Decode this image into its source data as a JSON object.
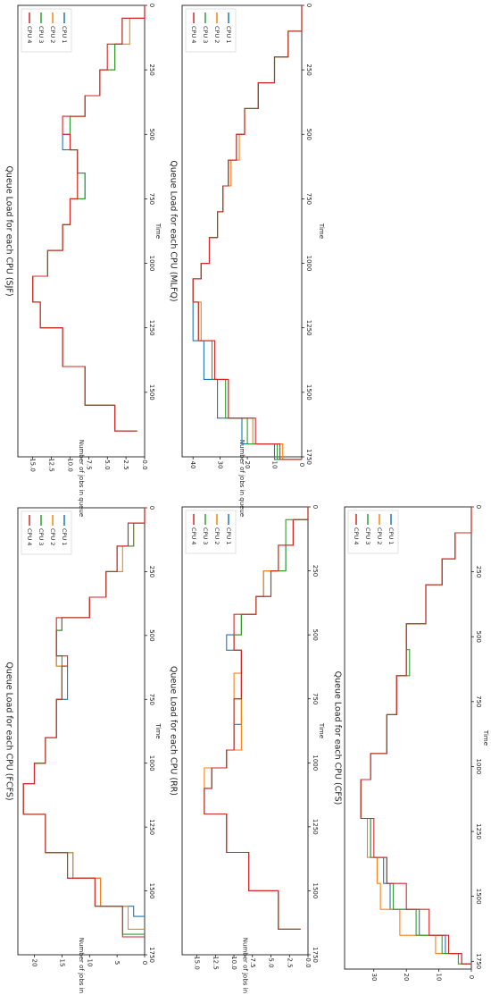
{
  "chart_data": [
    {
      "type": "line",
      "title": "Queue Load for each CPU (FCFS)",
      "xlabel": "Time",
      "ylabel": "Number of jobs in queue",
      "xlim": [
        0,
        1750
      ],
      "ylim": [
        0,
        23
      ],
      "xticks": [
        0,
        250,
        500,
        750,
        1000,
        1250,
        1500,
        1750
      ],
      "yticks": [
        0,
        5,
        10,
        15,
        20
      ],
      "legend_position": "top-right",
      "series": [
        {
          "name": "CPU 1",
          "color": "#1f77b4",
          "x": [
            0,
            60,
            150,
            250,
            350,
            430,
            480,
            580,
            620,
            750,
            900,
            1000,
            1080,
            1200,
            1350,
            1450,
            1560,
            1600
          ],
          "y": [
            0,
            3,
            5,
            7,
            10,
            15,
            16,
            16,
            14,
            16,
            18,
            20,
            22,
            18,
            13,
            8,
            2,
            0
          ]
        },
        {
          "name": "CPU 2",
          "color": "#ff7f0e",
          "x": [
            0,
            60,
            150,
            250,
            350,
            430,
            480,
            580,
            620,
            750,
            900,
            1000,
            1080,
            1200,
            1350,
            1450,
            1560,
            1650
          ],
          "y": [
            0,
            2,
            4,
            7,
            10,
            15,
            16,
            16,
            15,
            16,
            18,
            20,
            22,
            18,
            13,
            8,
            3,
            0
          ]
        },
        {
          "name": "CPU 3",
          "color": "#2ca02c",
          "x": [
            0,
            60,
            150,
            250,
            350,
            430,
            480,
            580,
            620,
            750,
            900,
            1000,
            1080,
            1200,
            1350,
            1450,
            1560,
            1670
          ],
          "y": [
            0,
            2,
            5,
            7,
            10,
            15,
            16,
            15,
            15,
            16,
            18,
            20,
            22,
            18,
            14,
            9,
            4,
            0
          ]
        },
        {
          "name": "CPU 4",
          "color": "#d62728",
          "x": [
            0,
            60,
            150,
            250,
            350,
            430,
            480,
            580,
            620,
            750,
            900,
            1000,
            1080,
            1200,
            1350,
            1450,
            1560,
            1680
          ],
          "y": [
            0,
            3,
            5,
            7,
            10,
            16,
            16,
            14,
            15,
            16,
            18,
            20,
            22,
            18,
            14,
            9,
            4,
            0
          ]
        }
      ]
    },
    {
      "type": "line",
      "title": "Queue Load for each CPU (SJF)",
      "xlabel": "Time",
      "ylabel": "Number of jobs in queue",
      "xlim": [
        0,
        1750
      ],
      "ylim": [
        0,
        17
      ],
      "xticks": [
        0,
        250,
        500,
        750,
        1000,
        1250,
        1500
      ],
      "yticks": [
        0.0,
        2.5,
        5.0,
        7.5,
        10.0,
        12.5,
        15.0
      ],
      "legend_position": "top-right",
      "series": [
        {
          "name": "CPU 1",
          "color": "#1f77b4",
          "x": [
            0,
            50,
            150,
            250,
            350,
            430,
            500,
            560,
            650,
            750,
            850,
            950,
            1050,
            1150,
            1250,
            1400,
            1550,
            1650
          ],
          "y": [
            0,
            3,
            4,
            6,
            8,
            10,
            11,
            9,
            8,
            10,
            11,
            13,
            15,
            14,
            11,
            8,
            4,
            1
          ]
        },
        {
          "name": "CPU 2",
          "color": "#ff7f0e",
          "x": [
            0,
            50,
            150,
            250,
            350,
            430,
            500,
            560,
            650,
            750,
            850,
            950,
            1050,
            1150,
            1250,
            1400,
            1550,
            1650
          ],
          "y": [
            0,
            2,
            4,
            6,
            8,
            10,
            10,
            9,
            9,
            10,
            11,
            13,
            15,
            14,
            11,
            8,
            4,
            1
          ]
        },
        {
          "name": "CPU 3",
          "color": "#2ca02c",
          "x": [
            0,
            50,
            150,
            250,
            350,
            430,
            500,
            560,
            650,
            750,
            850,
            950,
            1050,
            1150,
            1250,
            1400,
            1550,
            1650
          ],
          "y": [
            0,
            3,
            4,
            6,
            8,
            10,
            10,
            9,
            8,
            10,
            11,
            13,
            15,
            14,
            11,
            8,
            4,
            1
          ]
        },
        {
          "name": "CPU 4",
          "color": "#d62728",
          "x": [
            0,
            50,
            150,
            250,
            350,
            430,
            500,
            560,
            650,
            750,
            850,
            950,
            1050,
            1150,
            1250,
            1400,
            1550,
            1650
          ],
          "y": [
            0,
            3,
            5,
            6,
            8,
            11,
            10,
            9,
            9,
            10,
            11,
            13,
            15,
            14,
            11,
            8,
            4,
            1
          ]
        }
      ]
    },
    {
      "type": "line",
      "title": "Queue Load for each CPU (RR)",
      "xlabel": "Time",
      "ylabel": "Number of jobs in queue",
      "xlim": [
        0,
        1750
      ],
      "ylim": [
        0,
        17
      ],
      "xticks": [
        0,
        250,
        500,
        750,
        1000,
        1250,
        1500,
        1750
      ],
      "yticks": [
        0.0,
        2.5,
        5.0,
        7.5,
        10.0,
        12.5,
        15.0
      ],
      "legend_position": "top-right",
      "series": [
        {
          "name": "CPU 1",
          "color": "#1f77b4",
          "x": [
            0,
            50,
            150,
            250,
            350,
            420,
            500,
            560,
            650,
            750,
            850,
            950,
            1020,
            1100,
            1200,
            1350,
            1500,
            1650
          ],
          "y": [
            0,
            2,
            3,
            6,
            7,
            9,
            11,
            9,
            9,
            9,
            10,
            11,
            13,
            14,
            11,
            8,
            4,
            1
          ]
        },
        {
          "name": "CPU 2",
          "color": "#ff7f0e",
          "x": [
            0,
            50,
            150,
            250,
            350,
            420,
            500,
            560,
            650,
            750,
            850,
            950,
            1020,
            1100,
            1200,
            1350,
            1500,
            1650
          ],
          "y": [
            0,
            2,
            4,
            6,
            7,
            9,
            10,
            9,
            10,
            9,
            9,
            11,
            14,
            14,
            11,
            8,
            4,
            1
          ]
        },
        {
          "name": "CPU 3",
          "color": "#2ca02c",
          "x": [
            0,
            50,
            150,
            250,
            350,
            420,
            500,
            560,
            650,
            750,
            850,
            950,
            1020,
            1100,
            1200,
            1350,
            1500,
            1650
          ],
          "y": [
            0,
            3,
            3,
            5,
            7,
            9,
            10,
            9,
            9,
            10,
            10,
            11,
            13,
            14,
            11,
            8,
            4,
            1
          ]
        },
        {
          "name": "CPU 4",
          "color": "#d62728",
          "x": [
            0,
            50,
            150,
            250,
            350,
            420,
            500,
            560,
            650,
            750,
            850,
            950,
            1020,
            1100,
            1200,
            1350,
            1500,
            1650
          ],
          "y": [
            0,
            2,
            4,
            5,
            7,
            10,
            10,
            9,
            9,
            10,
            10,
            11,
            13,
            14,
            11,
            8,
            4,
            1
          ]
        }
      ]
    },
    {
      "type": "line",
      "title": "Queue Load for each CPU (MLFQ)",
      "xlabel": "Time",
      "ylabel": "Number of jobs in queue",
      "xlim": [
        0,
        1750
      ],
      "ylim": [
        0,
        44
      ],
      "xticks": [
        0,
        250,
        500,
        750,
        1000,
        1250,
        1500,
        1750
      ],
      "yticks": [
        0,
        10,
        20,
        30,
        40
      ],
      "legend_position": "top-right",
      "series": [
        {
          "name": "CPU 1",
          "color": "#1f77b4",
          "x": [
            0,
            100,
            200,
            300,
            400,
            500,
            600,
            700,
            800,
            900,
            1000,
            1060,
            1150,
            1300,
            1450,
            1600,
            1700,
            1760
          ],
          "y": [
            0,
            5,
            10,
            16,
            21,
            24,
            27,
            29,
            31,
            34,
            37,
            40,
            40,
            36,
            31,
            22,
            10,
            0
          ]
        },
        {
          "name": "CPU 2",
          "color": "#ff7f0e",
          "x": [
            0,
            100,
            200,
            300,
            400,
            500,
            600,
            700,
            800,
            900,
            1000,
            1060,
            1150,
            1300,
            1450,
            1600,
            1700,
            1760
          ],
          "y": [
            0,
            5,
            10,
            16,
            21,
            23,
            26,
            29,
            31,
            34,
            37,
            40,
            37,
            32,
            27,
            18,
            7,
            0
          ]
        },
        {
          "name": "CPU 3",
          "color": "#2ca02c",
          "x": [
            0,
            100,
            200,
            300,
            400,
            500,
            600,
            700,
            800,
            900,
            1000,
            1060,
            1150,
            1300,
            1450,
            1600,
            1700,
            1760
          ],
          "y": [
            0,
            5,
            10,
            16,
            21,
            24,
            27,
            29,
            31,
            34,
            37,
            40,
            38,
            33,
            28,
            20,
            9,
            0
          ]
        },
        {
          "name": "CPU 4",
          "color": "#d62728",
          "x": [
            0,
            100,
            200,
            300,
            400,
            500,
            600,
            700,
            800,
            900,
            1000,
            1060,
            1150,
            1300,
            1450,
            1600,
            1700,
            1760
          ],
          "y": [
            0,
            5,
            10,
            16,
            21,
            24,
            27,
            29,
            31,
            34,
            37,
            40,
            38,
            32,
            27,
            17,
            8,
            0
          ]
        }
      ]
    },
    {
      "type": "line",
      "title": "Queue Load for each CPU (CFS)",
      "xlabel": "Time",
      "ylabel": "Number of jobs in queue",
      "xlim": [
        0,
        1780
      ],
      "ylim": [
        0,
        39
      ],
      "xticks": [
        0,
        250,
        500,
        750,
        1000,
        1250,
        1500,
        1750
      ],
      "yticks": [
        0,
        10,
        20,
        30
      ],
      "legend_position": "top-right",
      "series": [
        {
          "name": "CPU 1",
          "color": "#1f77b4",
          "x": [
            0,
            100,
            200,
            300,
            450,
            550,
            650,
            800,
            950,
            1050,
            1100,
            1200,
            1350,
            1450,
            1550,
            1650,
            1720,
            1760
          ],
          "y": [
            0,
            5,
            9,
            14,
            20,
            20,
            23,
            26,
            31,
            34,
            34,
            31,
            27,
            25,
            16,
            8,
            3,
            0
          ]
        },
        {
          "name": "CPU 2",
          "color": "#ff7f0e",
          "x": [
            0,
            100,
            200,
            300,
            450,
            550,
            650,
            800,
            950,
            1050,
            1100,
            1200,
            1350,
            1450,
            1550,
            1650,
            1720,
            1760
          ],
          "y": [
            0,
            5,
            9,
            14,
            20,
            20,
            23,
            26,
            31,
            34,
            34,
            32,
            29,
            28,
            22,
            11,
            3,
            0
          ]
        },
        {
          "name": "CPU 3",
          "color": "#2ca02c",
          "x": [
            0,
            100,
            200,
            300,
            450,
            550,
            650,
            800,
            950,
            1050,
            1100,
            1200,
            1350,
            1450,
            1550,
            1650,
            1720,
            1760
          ],
          "y": [
            0,
            5,
            9,
            14,
            20,
            19,
            23,
            26,
            31,
            34,
            34,
            31,
            26,
            24,
            17,
            9,
            4,
            0
          ]
        },
        {
          "name": "CPU 4",
          "color": "#d62728",
          "x": [
            0,
            100,
            200,
            300,
            450,
            550,
            650,
            800,
            950,
            1050,
            1100,
            1200,
            1350,
            1450,
            1550,
            1650,
            1720,
            1760
          ],
          "y": [
            0,
            5,
            9,
            14,
            20,
            20,
            23,
            26,
            31,
            34,
            34,
            30,
            26,
            20,
            13,
            7,
            3,
            0
          ]
        }
      ]
    }
  ]
}
